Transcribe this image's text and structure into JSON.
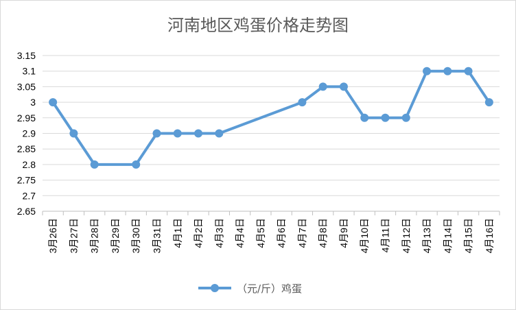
{
  "chart_data": {
    "type": "line",
    "title": "河南地区鸡蛋价格走势图",
    "xlabel": "",
    "ylabel": "",
    "ylim": [
      2.65,
      3.15
    ],
    "ytick_step": 0.05,
    "ytick_labels": [
      "2.65",
      "2.7",
      "2.75",
      "2.8",
      "2.85",
      "2.9",
      "2.95",
      "3",
      "3.05",
      "3.1",
      "3.15"
    ],
    "grid": true,
    "legend_position": "bottom",
    "categories": [
      "3月26日",
      "3月27日",
      "3月28日",
      "3月29日",
      "3月30日",
      "3月31日",
      "4月1日",
      "4月2日",
      "4月3日",
      "4月4日",
      "4月5日",
      "4月6日",
      "4月7日",
      "4月8日",
      "4月9日",
      "4月10日",
      "4月11日",
      "4月12日",
      "4月13日",
      "4月14日",
      "4月15日",
      "4月16日"
    ],
    "series": [
      {
        "name": "（元/斤）鸡蛋",
        "color": "#5b9bd5",
        "values": [
          3.0,
          2.9,
          2.8,
          null,
          2.8,
          2.9,
          2.9,
          2.9,
          2.9,
          null,
          null,
          null,
          3.0,
          3.05,
          3.05,
          2.95,
          2.95,
          2.95,
          3.1,
          3.1,
          3.1,
          3.0
        ]
      }
    ]
  }
}
